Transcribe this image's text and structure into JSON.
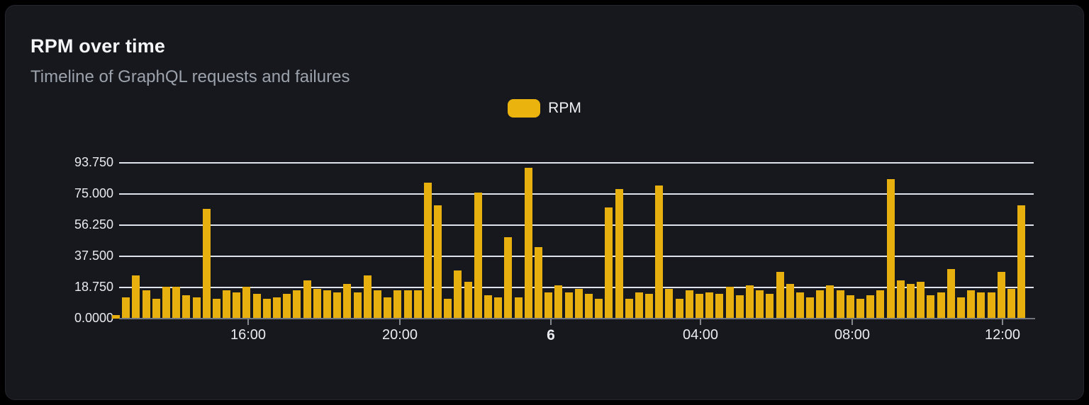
{
  "card": {
    "title": "RPM over time",
    "subtitle": "Timeline of GraphQL requests and failures"
  },
  "legend": {
    "items": [
      {
        "label": "RPM",
        "color": "#eab30e"
      }
    ]
  },
  "colors": {
    "page_background": "#000000",
    "card_background": "#16181d",
    "bar": "#e7b00e",
    "gridline": "#dfe3eb",
    "axis_line": "#70747d",
    "title_text": "#f5f6f8",
    "subtitle_text": "#9ca2ab",
    "tick_text": "#e8eaed"
  },
  "chart_data": {
    "type": "bar",
    "title": "RPM over time",
    "subtitle": "Timeline of GraphQL requests and failures",
    "xlabel": "",
    "ylabel": "",
    "ylim": [
      0,
      93.75
    ],
    "grid": true,
    "legend_position": "top-center",
    "y_ticks": [
      {
        "label": "0.0000",
        "value": 0
      },
      {
        "label": "18.750",
        "value": 18.75
      },
      {
        "label": "37.500",
        "value": 37.5
      },
      {
        "label": "56.250",
        "value": 56.25
      },
      {
        "label": "75.000",
        "value": 75
      },
      {
        "label": "93.750",
        "value": 93.75
      }
    ],
    "x_ticks": [
      {
        "label": "16:00",
        "emphasis": false
      },
      {
        "label": "20:00",
        "emphasis": false
      },
      {
        "label": "6",
        "emphasis": true
      },
      {
        "label": "04:00",
        "emphasis": false
      },
      {
        "label": "08:00",
        "emphasis": false
      },
      {
        "label": "12:00",
        "emphasis": false
      }
    ],
    "series": [
      {
        "name": "RPM",
        "color": "#e7b00e",
        "values": [
          2,
          13,
          26,
          17,
          12,
          19,
          19,
          14,
          13,
          66,
          12,
          17,
          16,
          19,
          15,
          12,
          13,
          15,
          17,
          23,
          18,
          17,
          16,
          21,
          16,
          26,
          17,
          13,
          17,
          17,
          17,
          82,
          68,
          12,
          29,
          22,
          76,
          14,
          13,
          49,
          13,
          91,
          43,
          16,
          20,
          16,
          18,
          15,
          12,
          67,
          78,
          12,
          16,
          15,
          80,
          18,
          12,
          17,
          15,
          16,
          15,
          19,
          14,
          20,
          17,
          15,
          28,
          21,
          16,
          13,
          17,
          20,
          17,
          14,
          12,
          14,
          17,
          84,
          23,
          21,
          22,
          14,
          16,
          30,
          13,
          17,
          16,
          16,
          28,
          18,
          68
        ]
      }
    ]
  }
}
